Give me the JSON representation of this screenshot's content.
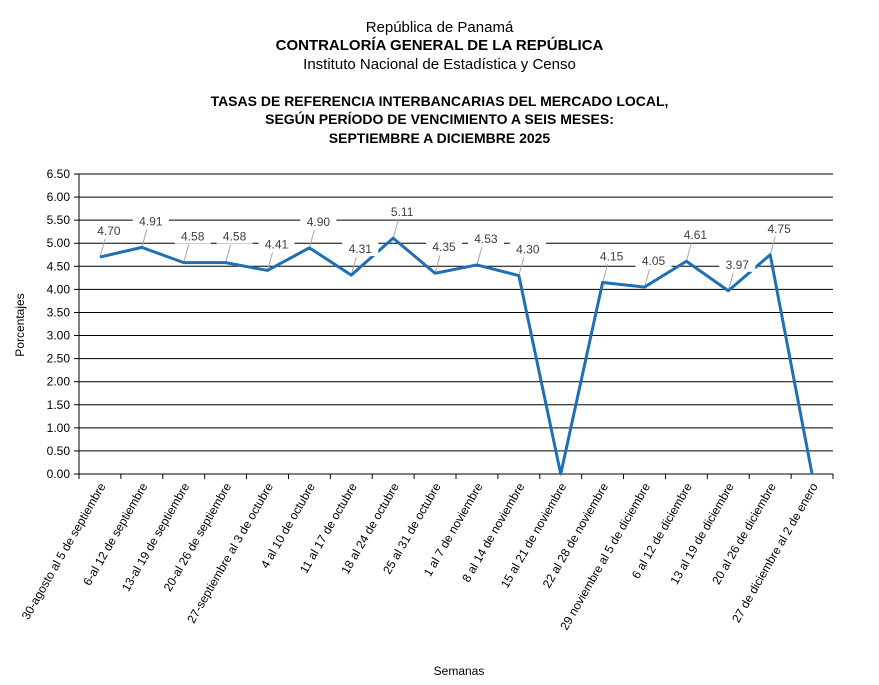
{
  "header": {
    "country": "República de Panamá",
    "institution": "CONTRALORÍA GENERAL DE LA REPÚBLICA",
    "agency": "Instituto  Nacional de Estadística  y Censo"
  },
  "chart_data": {
    "type": "line",
    "title": [
      "TASAS DE REFERENCIA INTERBANCARIAS DEL MERCADO LOCAL,",
      "SEGÚN PERÍODO DE VENCIMIENTO A SEIS MESES:",
      "SEPTIEMBRE A DICIEMBRE 2025"
    ],
    "xlabel": "Semanas",
    "ylabel": "Porcentajes",
    "ylim": [
      0,
      6.5
    ],
    "ytick_step": 0.5,
    "yticks": [
      "0.00",
      "0.50",
      "1.00",
      "1.50",
      "2.00",
      "2.50",
      "3.00",
      "3.50",
      "4.00",
      "4.50",
      "5.00",
      "5.50",
      "6.00",
      "6.50"
    ],
    "grid": true,
    "categories": [
      "30-agosto al 5 de septiembre",
      "6-al 12 de septiembre",
      "13-al 19 de septiembre",
      "20-al 26 de septiembre",
      "27-septiembre al 3 de octubre",
      "4 al 10 de octubre",
      "11 al 17 de octubre",
      "18 al 24 de octubre",
      "25 al 31 de octubre",
      "1 al 7 de noviembre",
      "8 al 14 de noviembre",
      "15 al 21 de noviembre",
      "22 al 28 de noviembre",
      "29 noviembre al 5 de diciembre",
      "6 al 12 de diciembre",
      "13 al 19 de diciembre",
      "20 al 26 de diciembre",
      "27 de diciembre al 2 de enero"
    ],
    "values": [
      4.7,
      4.91,
      4.58,
      4.58,
      4.41,
      4.9,
      4.31,
      5.11,
      4.35,
      4.53,
      4.3,
      0,
      4.15,
      4.05,
      4.61,
      3.97,
      4.75,
      0
    ],
    "data_labels": [
      "4.70",
      "4.91",
      "4.58",
      "4.58",
      "4.41",
      "4.90",
      "4.31",
      "5.11",
      "4.35",
      "4.53",
      "4.30",
      null,
      "4.15",
      "4.05",
      "4.61",
      "3.97",
      "4.75",
      null
    ],
    "line_color": "#1f6fb2"
  }
}
